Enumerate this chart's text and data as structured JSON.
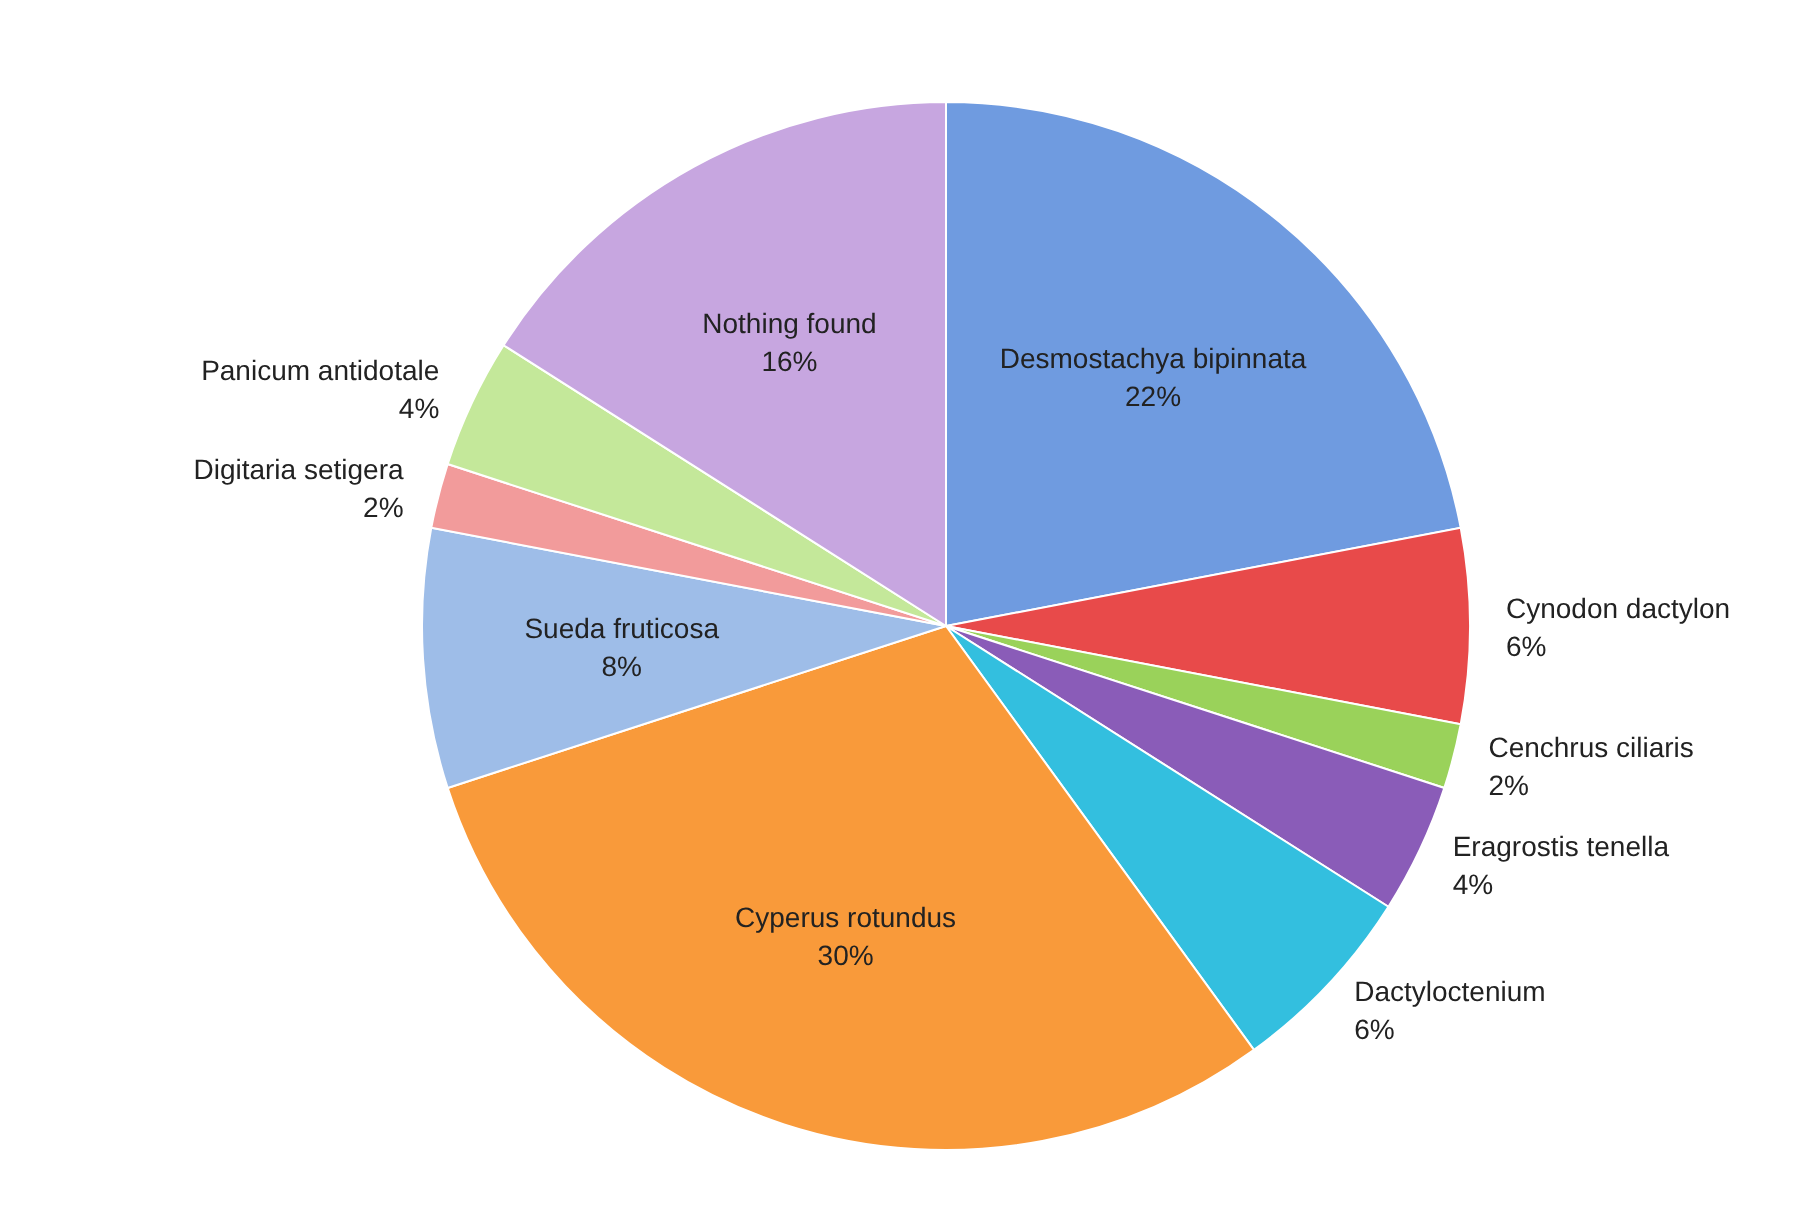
{
  "chart_data": {
    "type": "pie",
    "categories": [
      "Desmostachya bipinnata",
      "Cynodon dactylon",
      "Cenchrus ciliaris",
      "Eragrostis tenella",
      "Dactyloctenium",
      "Cyperus rotundus",
      "Sueda fruticosa",
      "Digitaria setigera",
      "Panicum antidotale",
      "Nothing found"
    ],
    "values": [
      22,
      6,
      2,
      4,
      6,
      30,
      8,
      2,
      4,
      16
    ],
    "value_labels": [
      "22%",
      "6%",
      "2%",
      "4%",
      "6%",
      "30%",
      "8%",
      "2%",
      "4%",
      "16%"
    ],
    "colors": [
      "#6f9be0",
      "#e84a4a",
      "#9ad25a",
      "#8a5cb8",
      "#33bfdf",
      "#f99a3a",
      "#9ebde8",
      "#f29b9b",
      "#c4e89a",
      "#c7a6e0"
    ]
  }
}
